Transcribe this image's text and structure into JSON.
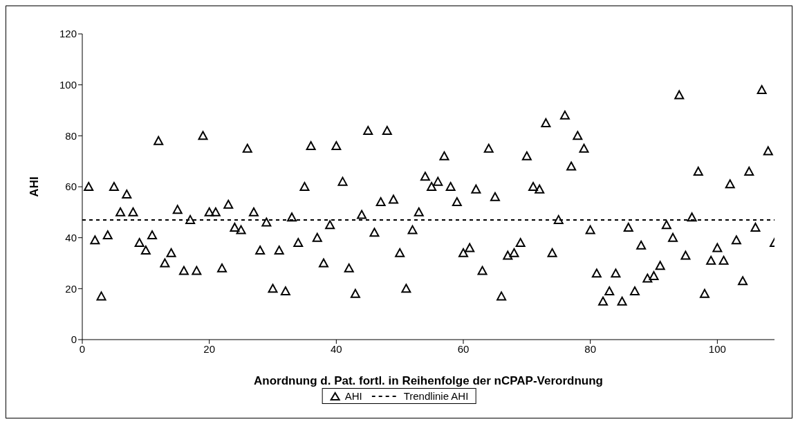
{
  "chart_data": {
    "type": "scatter",
    "xlabel": "Anordnung d. Pat. fortl. in Reihenfolge der nCPAP-Verordnung",
    "ylabel": "AHI",
    "xlim": [
      0,
      109
    ],
    "xticks": [
      0,
      20,
      40,
      60,
      80,
      100
    ],
    "ylim": [
      0,
      120
    ],
    "yticks": [
      0,
      20,
      40,
      60,
      80,
      100,
      120
    ],
    "grid": false,
    "legend": "bottom",
    "x": [
      1,
      2,
      3,
      4,
      5,
      6,
      7,
      8,
      9,
      10,
      11,
      12,
      13,
      14,
      15,
      16,
      17,
      18,
      19,
      20,
      21,
      22,
      23,
      24,
      25,
      26,
      27,
      28,
      29,
      30,
      31,
      32,
      33,
      34,
      35,
      36,
      37,
      38,
      39,
      40,
      41,
      42,
      43,
      44,
      45,
      46,
      47,
      48,
      49,
      50,
      51,
      52,
      53,
      54,
      55,
      56,
      57,
      58,
      59,
      60,
      61,
      62,
      63,
      64,
      65,
      66,
      67,
      68,
      69,
      70,
      71,
      72,
      73,
      74,
      75,
      76,
      77,
      78,
      79,
      80,
      81,
      82,
      83,
      84,
      85,
      86,
      87,
      88,
      89,
      90,
      91,
      92,
      93,
      94,
      95,
      96,
      97,
      98,
      99,
      100,
      101,
      102,
      103,
      104,
      105,
      106,
      107,
      108,
      109
    ],
    "series": [
      {
        "name": "AHI",
        "marker": "triangle",
        "color": "#000000",
        "values": [
          60,
          39,
          17,
          41,
          60,
          50,
          57,
          50,
          38,
          35,
          41,
          78,
          30,
          34,
          51,
          27,
          47,
          27,
          80,
          50,
          50,
          28,
          53,
          44,
          43,
          75,
          50,
          35,
          46,
          20,
          35,
          19,
          48,
          38,
          60,
          76,
          40,
          30,
          45,
          76,
          62,
          28,
          18,
          49,
          82,
          42,
          54,
          82,
          55,
          34,
          20,
          43,
          50,
          64,
          60,
          62,
          72,
          60,
          54,
          34,
          36,
          59,
          27,
          75,
          56,
          17,
          33,
          34,
          38,
          72,
          60,
          59,
          85,
          34,
          47,
          88,
          68,
          80,
          75,
          43,
          26,
          15,
          19,
          26,
          15,
          44,
          19,
          37,
          24,
          25,
          29,
          45,
          40,
          96,
          33,
          48,
          66,
          18,
          31,
          36,
          31,
          61,
          39,
          23,
          66,
          44,
          98,
          74,
          38
        ]
      },
      {
        "name": "Trendlinie AHI",
        "type": "line",
        "color": "#000000",
        "line_style": "dashed",
        "x": [
          0,
          109
        ],
        "values": [
          47,
          47
        ]
      }
    ]
  }
}
